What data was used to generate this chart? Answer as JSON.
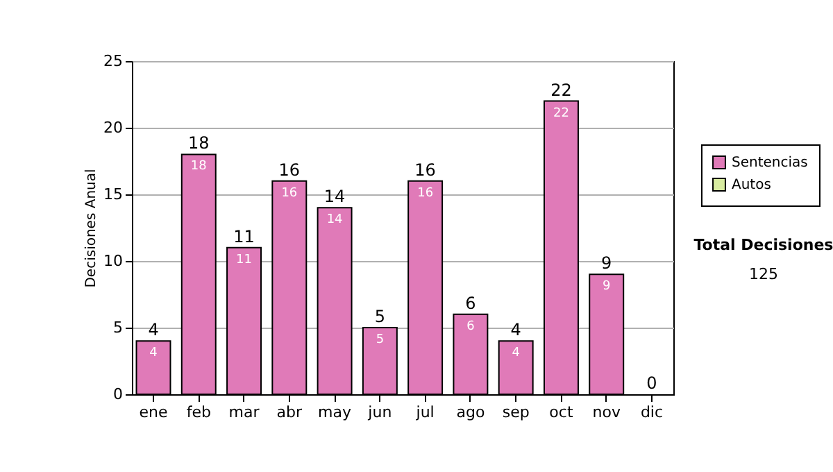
{
  "chart_data": {
    "type": "bar",
    "ylabel": "Decisiones Anual",
    "categories": [
      "ene",
      "feb",
      "mar",
      "abr",
      "may",
      "jun",
      "jul",
      "ago",
      "sep",
      "oct",
      "nov",
      "dic"
    ],
    "series": [
      {
        "name": "Sentencias",
        "color": "#e07ab8",
        "values": [
          4,
          18,
          11,
          16,
          14,
          5,
          16,
          6,
          4,
          22,
          9,
          0
        ],
        "value_labels": [
          "4",
          "18",
          "11",
          "16",
          "14",
          "5",
          "16",
          "6",
          "4",
          "22",
          "9",
          null
        ]
      },
      {
        "name": "Autos",
        "color": "#d8eca0",
        "values": [
          0,
          0,
          0,
          0,
          0,
          0,
          0,
          0,
          0,
          0,
          0,
          0
        ]
      }
    ],
    "stacked": true,
    "totals": [
      "4",
      "18",
      "11",
      "16",
      "14",
      "5",
      "16",
      "6",
      "4",
      "22",
      "9",
      "0"
    ],
    "ylim": [
      0,
      25
    ],
    "yticks": [
      0,
      5,
      10,
      15,
      20,
      25
    ],
    "grid": "y",
    "legend": "right",
    "annotations": [
      "Total Decisiones",
      "125"
    ]
  }
}
